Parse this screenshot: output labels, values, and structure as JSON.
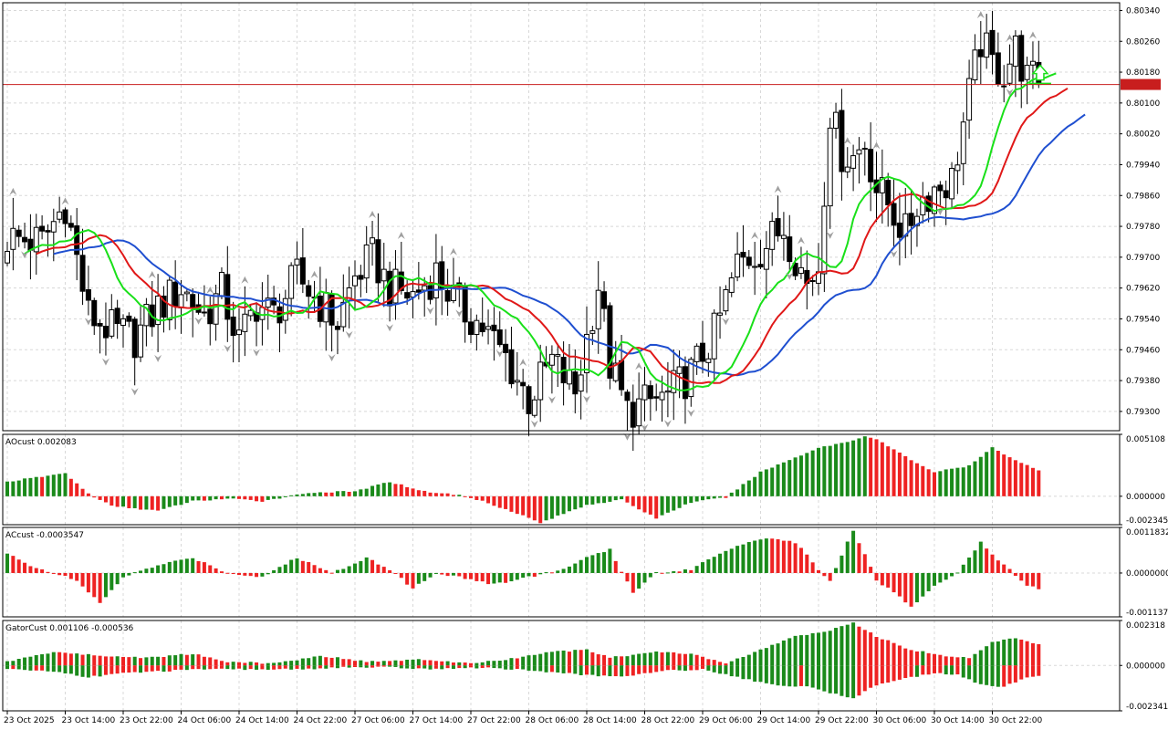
{
  "chart_data": {
    "type": "candlestick",
    "symbol_price_label": "0.80148",
    "colors": {
      "up_body": "#ffffff",
      "down_body": "#000000",
      "wick": "#000000",
      "jaw": "#1f4fd0",
      "teeth": "#e01818",
      "lips": "#19e019",
      "bid_line": "#c81e1e",
      "histogram_up": "#1a8a1a",
      "histogram_down": "#ee2222",
      "grid": "#d8d8d8",
      "fractal": "#a0a0a0",
      "signal_arrow": "#19e019"
    },
    "time_labels": [
      "23 Oct 2025",
      "23 Oct 14:00",
      "23 Oct 22:00",
      "24 Oct 06:00",
      "24 Oct 14:00",
      "24 Oct 22:00",
      "27 Oct 06:00",
      "27 Oct 14:00",
      "27 Oct 22:00",
      "28 Oct 06:00",
      "28 Oct 14:00",
      "28 Oct 22:00",
      "29 Oct 06:00",
      "29 Oct 14:00",
      "29 Oct 22:00",
      "30 Oct 06:00",
      "30 Oct 14:00",
      "30 Oct 22:00"
    ],
    "main_pane": {
      "ylim": [
        0.7925,
        0.8036
      ],
      "price_labels": [
        "0.80340",
        "0.80260",
        "0.80180",
        "0.80100",
        "0.80020",
        "0.79940",
        "0.79860",
        "0.79780",
        "0.79700",
        "0.79620",
        "0.79540",
        "0.79460",
        "0.79380",
        "0.79300"
      ],
      "price_ticks": [
        0.8034,
        0.8026,
        0.8018,
        0.801,
        0.8002,
        0.7994,
        0.7986,
        0.7978,
        0.797,
        0.7962,
        0.7954,
        0.7946,
        0.7938,
        0.793
      ],
      "current_price": 0.80148,
      "close_anchors": [
        [
          0,
          0.7975
        ],
        [
          6,
          0.7974
        ],
        [
          10,
          0.7984
        ],
        [
          14,
          0.7955
        ],
        [
          18,
          0.7951
        ],
        [
          22,
          0.7949
        ],
        [
          26,
          0.7957
        ],
        [
          30,
          0.7962
        ],
        [
          34,
          0.7955
        ],
        [
          37,
          0.7961
        ],
        [
          40,
          0.7948
        ],
        [
          43,
          0.7958
        ],
        [
          46,
          0.7955
        ],
        [
          50,
          0.7965
        ],
        [
          54,
          0.7958
        ],
        [
          57,
          0.7953
        ],
        [
          60,
          0.7965
        ],
        [
          63,
          0.797
        ],
        [
          66,
          0.7962
        ],
        [
          70,
          0.796
        ],
        [
          74,
          0.7966
        ],
        [
          78,
          0.7957
        ],
        [
          82,
          0.7952
        ],
        [
          86,
          0.7944
        ],
        [
          90,
          0.7933
        ],
        [
          94,
          0.7943
        ],
        [
          98,
          0.7935
        ],
        [
          102,
          0.7963
        ],
        [
          104,
          0.7942
        ],
        [
          107,
          0.793
        ],
        [
          110,
          0.7932
        ],
        [
          114,
          0.7934
        ],
        [
          118,
          0.794
        ],
        [
          122,
          0.795
        ],
        [
          126,
          0.7968
        ],
        [
          130,
          0.7972
        ],
        [
          134,
          0.7978
        ],
        [
          138,
          0.7963
        ],
        [
          140,
          0.7968
        ],
        [
          142,
          0.8008
        ],
        [
          144,
          0.7997
        ],
        [
          146,
          0.7996
        ],
        [
          148,
          0.8
        ],
        [
          150,
          0.7988
        ],
        [
          152,
          0.7984
        ],
        [
          155,
          0.7976
        ],
        [
          157,
          0.7984
        ],
        [
          160,
          0.7988
        ],
        [
          163,
          0.799
        ],
        [
          166,
          0.8012
        ],
        [
          168,
          0.8026
        ],
        [
          170,
          0.802
        ],
        [
          172,
          0.8018
        ],
        [
          174,
          0.8024
        ],
        [
          176,
          0.8016
        ]
      ],
      "fractals_up": [
        1,
        10,
        25,
        35,
        41,
        53,
        63,
        68,
        77,
        89,
        109,
        129,
        133,
        137,
        145,
        150,
        168,
        173,
        177
      ],
      "fractals_down": [
        3,
        14,
        17,
        22,
        26,
        33,
        38,
        43,
        56,
        59,
        66,
        73,
        78,
        85,
        91,
        94,
        100,
        107,
        110,
        114,
        118,
        124,
        135,
        142,
        153,
        161,
        173
      ],
      "signal_arrow_bar": 177
    },
    "ao_pane": {
      "title": "AOcust 0.002083",
      "ylim": [
        -0.002345,
        0.005108
      ],
      "labels": [
        "0.005108",
        "0.000000",
        "-0.002345"
      ],
      "ticks": [
        0.005108,
        0.0,
        -0.002345
      ],
      "anchors": [
        [
          0,
          0.0012
        ],
        [
          10,
          0.0019
        ],
        [
          14,
          0.0002
        ],
        [
          18,
          -0.0008
        ],
        [
          26,
          -0.0012
        ],
        [
          32,
          -0.0004
        ],
        [
          38,
          -0.0002
        ],
        [
          44,
          -0.0004
        ],
        [
          52,
          0.0003
        ],
        [
          60,
          0.0004
        ],
        [
          66,
          0.0012
        ],
        [
          72,
          0.0004
        ],
        [
          78,
          0.0001
        ],
        [
          82,
          -0.0004
        ],
        [
          88,
          -0.0014
        ],
        [
          92,
          -0.0022
        ],
        [
          100,
          -0.0007
        ],
        [
          106,
          -0.0003
        ],
        [
          112,
          -0.0018
        ],
        [
          118,
          -0.0005
        ],
        [
          124,
          -0.0001
        ],
        [
          130,
          0.002
        ],
        [
          136,
          0.0032
        ],
        [
          140,
          0.004
        ],
        [
          146,
          0.0046
        ],
        [
          148,
          0.005
        ],
        [
          150,
          0.0047
        ],
        [
          156,
          0.003
        ],
        [
          160,
          0.002
        ],
        [
          166,
          0.0025
        ],
        [
          170,
          0.004
        ],
        [
          174,
          0.003
        ],
        [
          178,
          0.0021
        ]
      ]
    },
    "ac_pane": {
      "title": "ACcust -0.0003547",
      "ylim": [
        -0.0011375,
        0.0011832
      ],
      "labels": [
        "0.0011832",
        "0.0000000",
        "-0.0011375"
      ],
      "ticks": [
        0.0011832,
        0.0,
        -0.0011375
      ],
      "anchors": [
        [
          0,
          0.0005
        ],
        [
          4,
          0.0002
        ],
        [
          8,
          0.0
        ],
        [
          12,
          -0.0002
        ],
        [
          16,
          -0.0008
        ],
        [
          20,
          -0.0001
        ],
        [
          26,
          0.0002
        ],
        [
          32,
          0.0004
        ],
        [
          38,
          0.0
        ],
        [
          44,
          -0.0001
        ],
        [
          50,
          0.0004
        ],
        [
          56,
          0.0
        ],
        [
          62,
          0.0004
        ],
        [
          66,
          0.0001
        ],
        [
          70,
          -0.0004
        ],
        [
          74,
          0.0
        ],
        [
          78,
          -0.0001
        ],
        [
          84,
          -0.0003
        ],
        [
          90,
          -0.0001
        ],
        [
          96,
          0.0001
        ],
        [
          100,
          0.0004
        ],
        [
          104,
          0.0006
        ],
        [
          108,
          -0.0005
        ],
        [
          112,
          0.0
        ],
        [
          118,
          0.0001
        ],
        [
          124,
          0.0006
        ],
        [
          130,
          0.0009
        ],
        [
          136,
          0.0008
        ],
        [
          140,
          0.0001
        ],
        [
          142,
          -0.0002
        ],
        [
          145,
          0.0008
        ],
        [
          146,
          0.0011
        ],
        [
          148,
          0.0005
        ],
        [
          150,
          -0.0002
        ],
        [
          154,
          -0.0006
        ],
        [
          156,
          -0.0009
        ],
        [
          160,
          -0.0003
        ],
        [
          164,
          0.0
        ],
        [
          166,
          0.0004
        ],
        [
          168,
          0.0008
        ],
        [
          172,
          0.0002
        ],
        [
          176,
          -0.0003
        ],
        [
          178,
          -0.0004
        ]
      ]
    },
    "gator_pane": {
      "title": "GatorCust 0.001106 -0.000536",
      "ylim": [
        -0.002341,
        0.002318
      ],
      "labels": [
        "0.002318",
        "0.000000",
        "-0.002341"
      ],
      "ticks": [
        0.002318,
        0.0,
        -0.002341
      ],
      "upper_anchors": [
        [
          0,
          0.0002
        ],
        [
          8,
          0.0007
        ],
        [
          16,
          0.0005
        ],
        [
          24,
          0.0004
        ],
        [
          32,
          0.0006
        ],
        [
          38,
          0.0002
        ],
        [
          46,
          0.0001
        ],
        [
          54,
          0.0005
        ],
        [
          62,
          0.0002
        ],
        [
          72,
          0.0003
        ],
        [
          80,
          0.0001
        ],
        [
          86,
          0.0003
        ],
        [
          94,
          0.0007
        ],
        [
          100,
          0.0008
        ],
        [
          104,
          0.0004
        ],
        [
          112,
          0.0007
        ],
        [
          118,
          0.0006
        ],
        [
          124,
          0.0001
        ],
        [
          130,
          0.0008
        ],
        [
          136,
          0.0015
        ],
        [
          142,
          0.0018
        ],
        [
          146,
          0.0022
        ],
        [
          150,
          0.0015
        ],
        [
          156,
          0.0008
        ],
        [
          162,
          0.0005
        ],
        [
          166,
          0.0004
        ],
        [
          170,
          0.0012
        ],
        [
          174,
          0.0014
        ],
        [
          178,
          0.0011
        ]
      ],
      "lower_anchors": [
        [
          0,
          -0.0002
        ],
        [
          8,
          -0.0003
        ],
        [
          14,
          -0.0006
        ],
        [
          20,
          -0.0004
        ],
        [
          26,
          -0.0003
        ],
        [
          34,
          -0.0002
        ],
        [
          42,
          -0.0002
        ],
        [
          50,
          -0.0002
        ],
        [
          58,
          -0.0001
        ],
        [
          66,
          -0.0001
        ],
        [
          74,
          -0.0002
        ],
        [
          80,
          -0.0001
        ],
        [
          88,
          -0.0002
        ],
        [
          96,
          -0.0004
        ],
        [
          100,
          -0.0005
        ],
        [
          106,
          -0.0006
        ],
        [
          112,
          -0.0003
        ],
        [
          120,
          -0.0002
        ],
        [
          126,
          -0.0006
        ],
        [
          132,
          -0.001
        ],
        [
          138,
          -0.0011
        ],
        [
          142,
          -0.0014
        ],
        [
          146,
          -0.0017
        ],
        [
          150,
          -0.001
        ],
        [
          156,
          -0.0006
        ],
        [
          160,
          -0.0004
        ],
        [
          164,
          -0.0005
        ],
        [
          168,
          -0.001
        ],
        [
          172,
          -0.0011
        ],
        [
          176,
          -0.0006
        ],
        [
          178,
          -0.0005
        ]
      ]
    }
  }
}
